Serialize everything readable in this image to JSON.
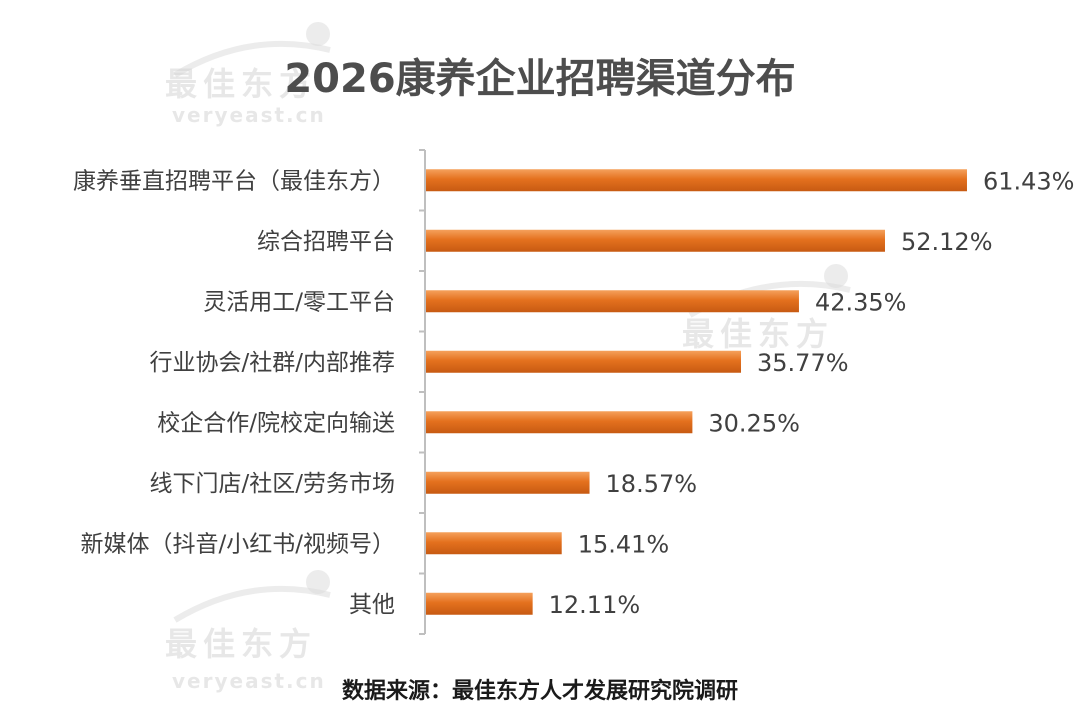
{
  "chart_data": {
    "type": "bar",
    "orientation": "horizontal",
    "title": "2026康养企业招聘渠道分布",
    "categories": [
      "康养垂直招聘平台（最佳东方）",
      "综合招聘平台",
      "灵活用工/零工平台",
      "行业协会/社群/内部推荐",
      "校企合作/院校定向输送",
      "线下门店/社区/劳务市场",
      "新媒体（抖音/小红书/视频号）",
      "其他"
    ],
    "values": [
      61.43,
      52.12,
      42.35,
      35.77,
      30.25,
      18.57,
      15.41,
      12.11
    ],
    "value_labels": [
      "61.43%",
      "52.12%",
      "42.35%",
      "35.77%",
      "30.25%",
      "18.57%",
      "15.41%",
      "12.11%"
    ],
    "xlim": [
      0,
      62
    ],
    "grid": false,
    "colors": {
      "bar": "#e4711e",
      "bar_light": "#f5a15c",
      "bar_dark": "#c75a12",
      "axis": "#bfbfbf"
    }
  },
  "source_note": "数据来源：最佳东方人才发展研究院调研",
  "watermark": {
    "brand": "最佳东方",
    "domain": "veryeast.cn"
  }
}
